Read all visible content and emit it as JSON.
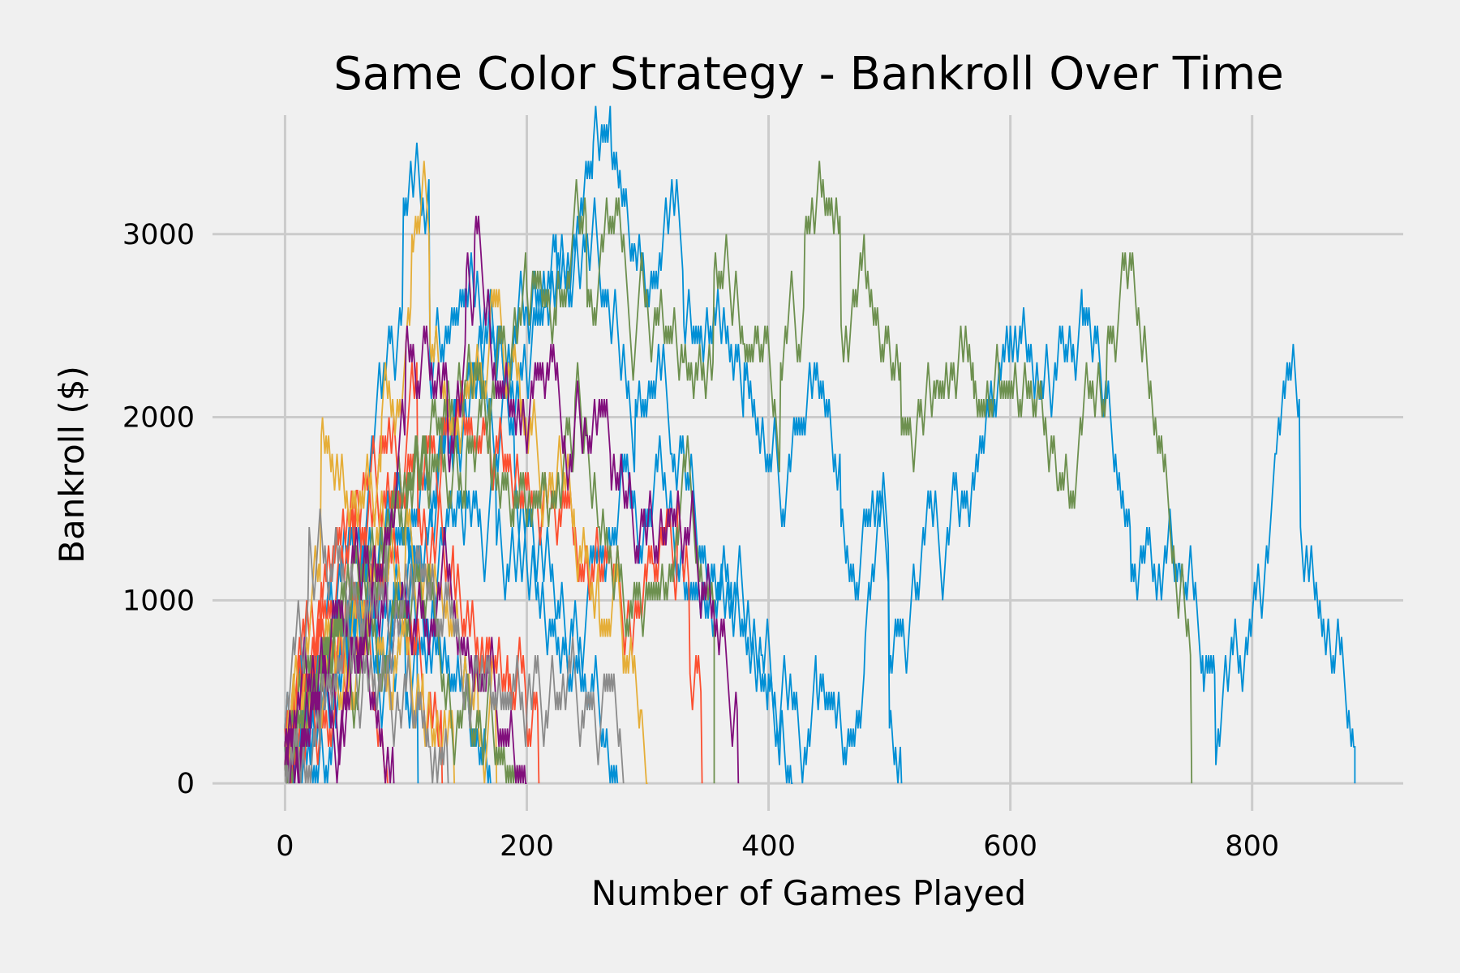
{
  "chart_data": {
    "type": "line",
    "title": "Same Color Strategy - Bankroll Over Time",
    "xlabel": "Number of Games Played",
    "ylabel": "Bankroll ($)",
    "xlim": [
      -60,
      925
    ],
    "ylim": [
      -150,
      3650
    ],
    "xticks": [
      0,
      200,
      400,
      600,
      800
    ],
    "yticks": [
      0,
      1000,
      2000,
      3000
    ],
    "xtick_labels": [
      "0",
      "200",
      "400",
      "600",
      "800"
    ],
    "ytick_labels": [
      "0",
      "1000",
      "2000",
      "3000"
    ],
    "grid": true,
    "legend": "none",
    "step_size": 100,
    "series": [
      {
        "color": "#008fd5",
        "points": [
          [
            0,
            300
          ],
          [
            45,
            1200
          ],
          [
            75,
            2000
          ],
          [
            98,
            3200
          ],
          [
            120,
            2200
          ],
          [
            150,
            2700
          ],
          [
            185,
            2300
          ],
          [
            215,
            2600
          ],
          [
            240,
            2900
          ],
          [
            255,
            3500
          ],
          [
            270,
            3450
          ],
          [
            290,
            2900
          ],
          [
            330,
            2500
          ],
          [
            380,
            2300
          ],
          [
            400,
            1700
          ],
          [
            430,
            1900
          ],
          [
            460,
            1400
          ],
          [
            500,
            600
          ],
          [
            520,
            1200
          ],
          [
            540,
            1400
          ],
          [
            580,
            2000
          ],
          [
            600,
            2500
          ],
          [
            625,
            2100
          ],
          [
            660,
            2500
          ],
          [
            700,
            1100
          ],
          [
            740,
            1200
          ],
          [
            760,
            500
          ],
          [
            770,
            100
          ],
          [
            800,
            900
          ],
          [
            820,
            1800
          ],
          [
            840,
            1400
          ],
          [
            860,
            800
          ],
          [
            885,
            200
          ],
          [
            885,
            0
          ]
        ]
      },
      {
        "color": "#008fd5",
        "points": [
          [
            0,
            200
          ],
          [
            40,
            700
          ],
          [
            90,
            1500
          ],
          [
            130,
            1900
          ],
          [
            165,
            2400
          ],
          [
            200,
            2600
          ],
          [
            225,
            2800
          ],
          [
            250,
            3000
          ],
          [
            270,
            2400
          ],
          [
            290,
            2100
          ],
          [
            320,
            1800
          ],
          [
            350,
            1200
          ],
          [
            370,
            900
          ],
          [
            395,
            700
          ],
          [
            410,
            300
          ],
          [
            420,
            0
          ]
        ]
      },
      {
        "color": "#008fd5",
        "points": [
          [
            0,
            100
          ],
          [
            50,
            800
          ],
          [
            100,
            1400
          ],
          [
            140,
            2000
          ],
          [
            170,
            2100
          ],
          [
            190,
            1700
          ],
          [
            205,
            1400
          ],
          [
            225,
            900
          ],
          [
            235,
            700
          ],
          [
            255,
            500
          ],
          [
            265,
            200
          ],
          [
            275,
            0
          ]
        ]
      },
      {
        "color": "#008fd5",
        "points": [
          [
            0,
            200
          ],
          [
            55,
            900
          ],
          [
            110,
            1100
          ],
          [
            150,
            1600
          ],
          [
            175,
            1300
          ],
          [
            200,
            1200
          ],
          [
            215,
            900
          ],
          [
            240,
            600
          ],
          [
            270,
            1300
          ],
          [
            300,
            1500
          ],
          [
            330,
            1100
          ],
          [
            370,
            900
          ],
          [
            400,
            600
          ],
          [
            440,
            500
          ],
          [
            460,
            300
          ],
          [
            480,
            800
          ],
          [
            500,
            300
          ],
          [
            510,
            0
          ]
        ]
      },
      {
        "color": "#008fd5",
        "points": [
          [
            0,
            100
          ],
          [
            25,
            400
          ],
          [
            60,
            900
          ],
          [
            90,
            1100
          ],
          [
            120,
            800
          ],
          [
            145,
            500
          ],
          [
            160,
            200
          ],
          [
            170,
            0
          ]
        ]
      },
      {
        "color": "#008fd5",
        "points": [
          [
            0,
            200
          ],
          [
            30,
            600
          ],
          [
            60,
            1000
          ],
          [
            85,
            700
          ],
          [
            100,
            400
          ],
          [
            110,
            0
          ]
        ]
      },
      {
        "color": "#fc4f30",
        "points": [
          [
            0,
            200
          ],
          [
            30,
            1100
          ],
          [
            60,
            1600
          ],
          [
            85,
            1900
          ],
          [
            110,
            1400
          ],
          [
            140,
            1100
          ],
          [
            160,
            700
          ],
          [
            185,
            500
          ],
          [
            200,
            300
          ],
          [
            210,
            0
          ]
        ]
      },
      {
        "color": "#fc4f30",
        "points": [
          [
            0,
            100
          ],
          [
            35,
            900
          ],
          [
            75,
            1500
          ],
          [
            100,
            1600
          ],
          [
            130,
            2000
          ],
          [
            170,
            1800
          ],
          [
            200,
            1600
          ],
          [
            240,
            1400
          ],
          [
            265,
            1300
          ],
          [
            290,
            1000
          ],
          [
            305,
            1200
          ],
          [
            325,
            1600
          ],
          [
            335,
            600
          ],
          [
            345,
            0
          ]
        ]
      },
      {
        "color": "#fc4f30",
        "points": [
          [
            0,
            300
          ],
          [
            25,
            700
          ],
          [
            50,
            1000
          ],
          [
            80,
            1200
          ],
          [
            100,
            900
          ],
          [
            120,
            500
          ],
          [
            130,
            0
          ]
        ]
      },
      {
        "color": "#fc4f30",
        "points": [
          [
            0,
            100
          ],
          [
            20,
            600
          ],
          [
            40,
            300
          ],
          [
            60,
            800
          ],
          [
            75,
            400
          ],
          [
            85,
            0
          ]
        ]
      },
      {
        "color": "#e5ae38",
        "points": [
          [
            0,
            200
          ],
          [
            30,
            1900
          ],
          [
            55,
            1500
          ],
          [
            80,
            2000
          ],
          [
            105,
            3000
          ],
          [
            120,
            2400
          ],
          [
            140,
            1900
          ],
          [
            170,
            2600
          ],
          [
            195,
            2000
          ],
          [
            215,
            1700
          ],
          [
            240,
            1300
          ],
          [
            260,
            900
          ],
          [
            280,
            600
          ],
          [
            295,
            400
          ],
          [
            300,
            0
          ]
        ]
      },
      {
        "color": "#e5ae38",
        "points": [
          [
            0,
            100
          ],
          [
            35,
            600
          ],
          [
            70,
            1200
          ],
          [
            100,
            1400
          ],
          [
            125,
            1100
          ],
          [
            150,
            600
          ],
          [
            160,
            300
          ],
          [
            175,
            0
          ]
        ]
      },
      {
        "color": "#e5ae38",
        "points": [
          [
            0,
            200
          ],
          [
            30,
            500
          ],
          [
            60,
            900
          ],
          [
            90,
            600
          ],
          [
            115,
            300
          ],
          [
            140,
            0
          ]
        ]
      },
      {
        "color": "#6d904f",
        "points": [
          [
            0,
            200
          ],
          [
            50,
            1000
          ],
          [
            100,
            1600
          ],
          [
            150,
            1800
          ],
          [
            180,
            2400
          ],
          [
            200,
            2700
          ],
          [
            225,
            2700
          ],
          [
            250,
            2600
          ],
          [
            275,
            3100
          ],
          [
            300,
            2600
          ],
          [
            330,
            2300
          ],
          [
            355,
            2800
          ],
          [
            380,
            2400
          ],
          [
            410,
            2300
          ],
          [
            430,
            3000
          ],
          [
            460,
            2500
          ],
          [
            480,
            2800
          ],
          [
            510,
            1900
          ],
          [
            540,
            2200
          ],
          [
            570,
            2100
          ],
          [
            600,
            2100
          ],
          [
            620,
            2100
          ],
          [
            640,
            1600
          ],
          [
            660,
            2000
          ],
          [
            680,
            2400
          ],
          [
            700,
            2800
          ],
          [
            720,
            2000
          ],
          [
            735,
            1300
          ],
          [
            750,
            0
          ]
        ]
      },
      {
        "color": "#6d904f",
        "points": [
          [
            0,
            100
          ],
          [
            40,
            800
          ],
          [
            80,
            1300
          ],
          [
            120,
            1900
          ],
          [
            150,
            2200
          ],
          [
            170,
            1700
          ],
          [
            190,
            1600
          ],
          [
            220,
            1500
          ],
          [
            240,
            2100
          ],
          [
            260,
            1400
          ],
          [
            290,
            1000
          ],
          [
            315,
            1100
          ],
          [
            340,
            1200
          ],
          [
            355,
            1000
          ],
          [
            355,
            0
          ]
        ]
      },
      {
        "color": "#6d904f",
        "points": [
          [
            0,
            200
          ],
          [
            30,
            700
          ],
          [
            70,
            1100
          ],
          [
            100,
            900
          ],
          [
            130,
            500
          ],
          [
            160,
            300
          ],
          [
            180,
            100
          ],
          [
            195,
            0
          ]
        ]
      },
      {
        "color": "#810f7c",
        "points": [
          [
            0,
            200
          ],
          [
            45,
            1000
          ],
          [
            90,
            1400
          ],
          [
            100,
            2400
          ],
          [
            115,
            2500
          ],
          [
            135,
            1800
          ],
          [
            150,
            2800
          ],
          [
            157,
            3000
          ],
          [
            170,
            2400
          ],
          [
            195,
            1900
          ],
          [
            210,
            2200
          ],
          [
            230,
            1800
          ],
          [
            250,
            1900
          ],
          [
            270,
            1600
          ],
          [
            290,
            1200
          ],
          [
            320,
            1500
          ],
          [
            345,
            1100
          ],
          [
            360,
            800
          ],
          [
            375,
            0
          ]
        ]
      },
      {
        "color": "#810f7c",
        "points": [
          [
            0,
            100
          ],
          [
            40,
            600
          ],
          [
            80,
            1000
          ],
          [
            115,
            900
          ],
          [
            150,
            700
          ],
          [
            175,
            400
          ],
          [
            190,
            100
          ],
          [
            200,
            0
          ]
        ]
      },
      {
        "color": "#810f7c",
        "points": [
          [
            0,
            200
          ],
          [
            30,
            500
          ],
          [
            55,
            800
          ],
          [
            75,
            400
          ],
          [
            90,
            0
          ]
        ]
      },
      {
        "color": "#8b8b8b",
        "points": [
          [
            0,
            300
          ],
          [
            20,
            1400
          ],
          [
            50,
            1100
          ],
          [
            85,
            900
          ],
          [
            110,
            1200
          ],
          [
            140,
            800
          ],
          [
            170,
            500
          ],
          [
            200,
            400
          ],
          [
            230,
            600
          ],
          [
            250,
            400
          ],
          [
            270,
            600
          ],
          [
            280,
            0
          ]
        ]
      },
      {
        "color": "#8b8b8b",
        "points": [
          [
            0,
            100
          ],
          [
            30,
            500
          ],
          [
            65,
            700
          ],
          [
            95,
            400
          ],
          [
            120,
            200
          ],
          [
            135,
            0
          ]
        ]
      }
    ]
  }
}
